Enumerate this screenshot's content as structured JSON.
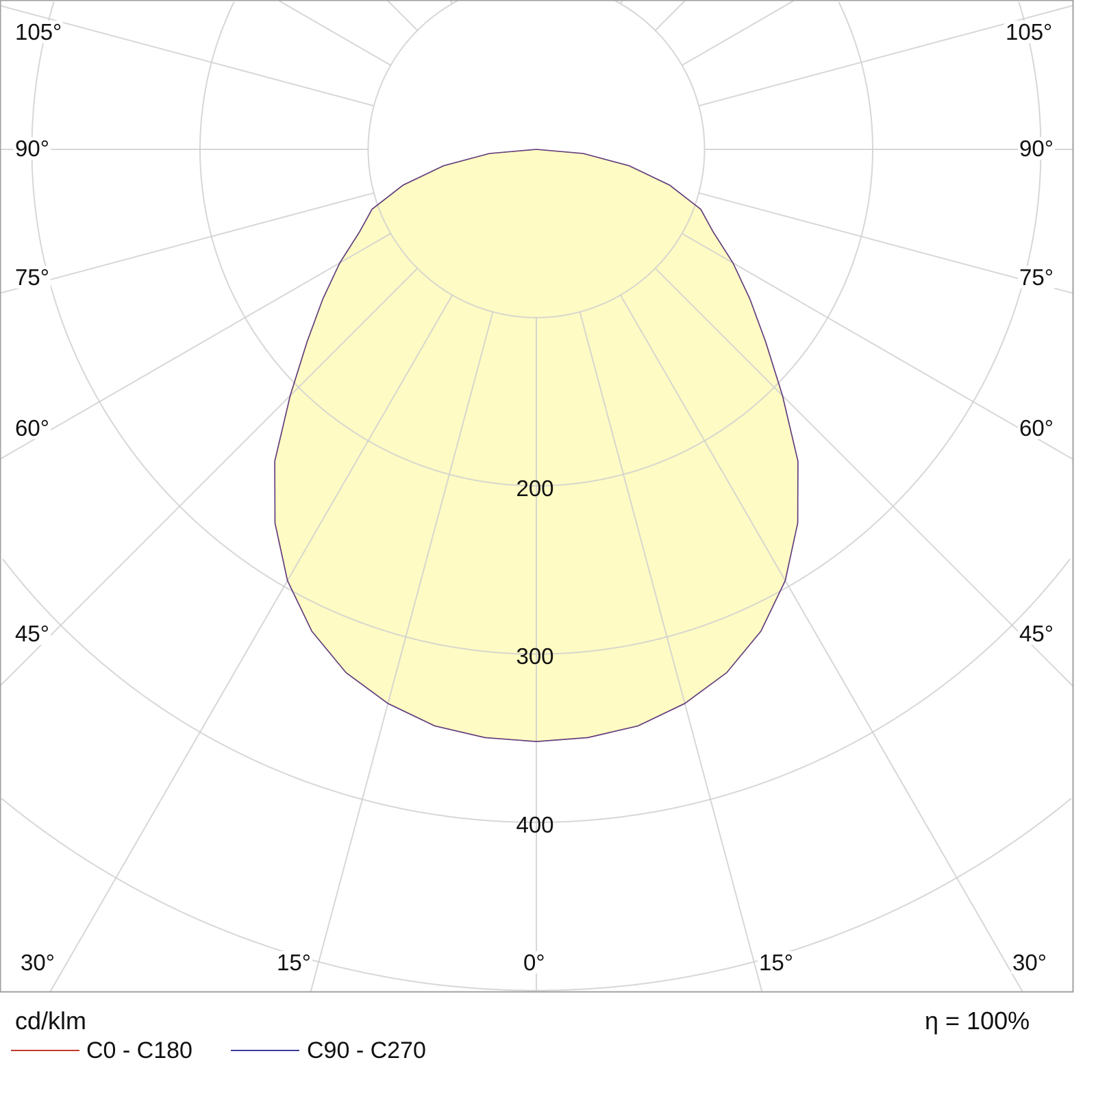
{
  "chart_data": {
    "type": "polar",
    "unit_label": "cd/klm",
    "efficiency_label": "η = 100%",
    "ring_values": [
      100,
      200,
      300,
      400,
      500,
      600,
      700
    ],
    "ring_labels": [
      "200",
      "300",
      "400"
    ],
    "angle_labels_left": [
      "105°",
      "90°",
      "75°",
      "60°",
      "45°",
      "30°",
      "15°"
    ],
    "angle_labels_right": [
      "105°",
      "90°",
      "75°",
      "60°",
      "45°",
      "30°",
      "15°"
    ],
    "angle_label_bottom": "0°",
    "grid": true,
    "angles": [
      0,
      5,
      10,
      15,
      20,
      25,
      30,
      35,
      40,
      45,
      50,
      55,
      60,
      65,
      70,
      75,
      80,
      85,
      90
    ],
    "series": [
      {
        "name": "C0 - C180",
        "color": "#c0392b",
        "values": [
          352,
          351,
          348,
          341,
          331,
          316,
          296,
          271,
          242,
          207,
          178,
          155,
          135,
          116,
          104,
          82,
          56,
          28,
          0
        ]
      },
      {
        "name": "C90 - C270",
        "color": "#3b3b9a",
        "values": [
          352,
          351,
          348,
          341,
          331,
          316,
          296,
          271,
          242,
          207,
          178,
          155,
          135,
          116,
          104,
          82,
          56,
          28,
          0
        ]
      }
    ],
    "fill_color": "#fffbc4"
  }
}
